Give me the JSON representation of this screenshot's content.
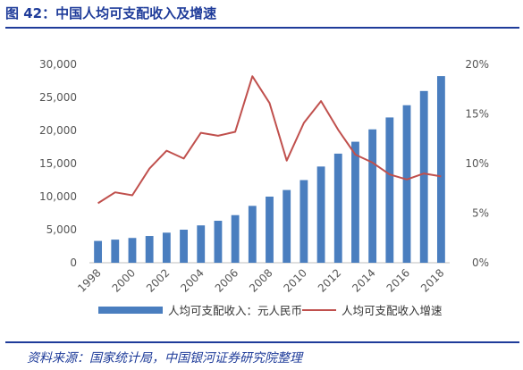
{
  "title": "图 42：中国人均可支配收入及增速",
  "source": "资料来源：国家统计局，中国银河证券研究院整理",
  "colors": {
    "bar": "#4a7ebf",
    "line": "#c0504d",
    "title": "#1f3c9a",
    "axis": "#bfbfbf"
  },
  "chart_data": {
    "type": "bar",
    "categories": [
      "1998",
      "1999",
      "2000",
      "2001",
      "2002",
      "2003",
      "2004",
      "2005",
      "2006",
      "2007",
      "2008",
      "2009",
      "2010",
      "2011",
      "2012",
      "2013",
      "2014",
      "2015",
      "2016",
      "2017",
      "2018"
    ],
    "x_tick_labels": [
      "1998",
      "2000",
      "2002",
      "2004",
      "2006",
      "2008",
      "2010",
      "2012",
      "2014",
      "2016",
      "2018"
    ],
    "series": [
      {
        "name": "人均可支配收入：元人民币",
        "type": "bar",
        "axis": "left",
        "values": [
          3300,
          3500,
          3750,
          4050,
          4550,
          5000,
          5650,
          6350,
          7200,
          8600,
          10000,
          11000,
          12500,
          14550,
          16500,
          18300,
          20170,
          21970,
          23820,
          25970,
          28230
        ]
      },
      {
        "name": "人均可支配收入增速",
        "type": "line",
        "axis": "right",
        "values": [
          6.0,
          7.1,
          6.8,
          9.5,
          11.3,
          10.5,
          13.1,
          12.8,
          13.2,
          18.8,
          16.1,
          10.3,
          14.1,
          16.3,
          13.4,
          10.9,
          10.1,
          8.9,
          8.4,
          9.0,
          8.7
        ]
      }
    ],
    "y_left": {
      "min": 0,
      "max": 30000,
      "ticks": [
        "0",
        "5,000",
        "10,000",
        "15,000",
        "20,000",
        "25,000",
        "30,000"
      ]
    },
    "y_right": {
      "min": 0,
      "max": 20,
      "ticks": [
        "0%",
        "5%",
        "10%",
        "15%",
        "20%"
      ]
    },
    "grid": false,
    "legend_position": "bottom"
  }
}
